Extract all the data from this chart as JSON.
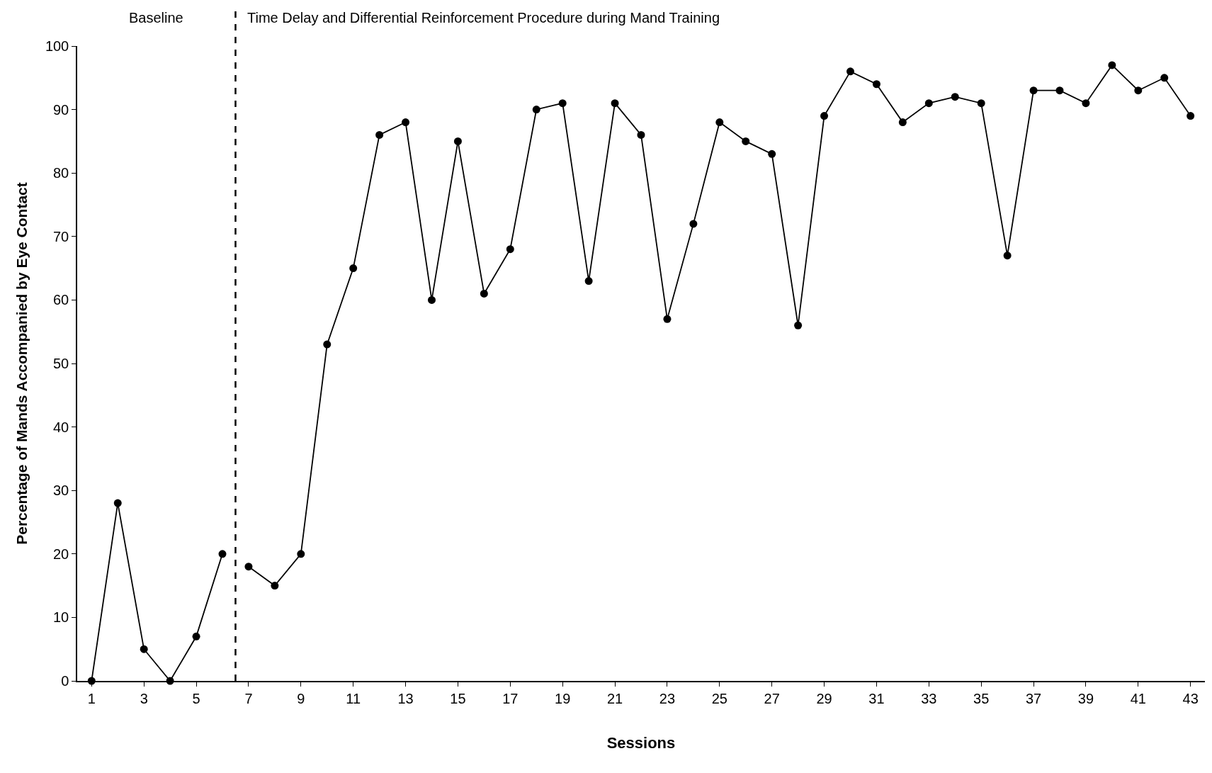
{
  "chart_data": {
    "type": "line",
    "xlabel": "Sessions",
    "ylabel": "Percentage of Mands Accompanied by Eye Contact",
    "annotations": [
      "Baseline",
      "Time Delay and Differential Reinforcement Procedure during Mand Training"
    ],
    "series": [
      {
        "color": "#000000",
        "x": [
          1,
          2,
          3,
          4,
          5,
          6
        ],
        "values": [
          0,
          28,
          5,
          0,
          7,
          20
        ]
      },
      {
        "color": "#000000",
        "x": [
          7,
          8,
          9,
          10,
          11,
          12,
          13,
          14,
          15,
          16,
          17,
          18,
          19,
          20,
          21,
          22,
          23,
          24,
          25,
          26,
          27,
          28,
          29,
          30,
          31,
          32,
          33,
          34,
          35,
          36,
          37,
          38,
          39,
          40,
          41,
          42,
          43
        ],
        "values": [
          18,
          15,
          20,
          53,
          65,
          86,
          88,
          60,
          85,
          61,
          68,
          90,
          91,
          63,
          91,
          86,
          57,
          72,
          88,
          85,
          83,
          56,
          89,
          96,
          94,
          88,
          91,
          92,
          91,
          67,
          93,
          93,
          91,
          97,
          93,
          95,
          89
        ]
      }
    ],
    "xlim": [
      0.45,
      43.55
    ],
    "xticks": [
      1,
      3,
      5,
      7,
      9,
      11,
      13,
      15,
      17,
      19,
      21,
      23,
      25,
      27,
      29,
      31,
      33,
      35,
      37,
      39,
      41,
      43
    ],
    "ylim": [
      0,
      100
    ],
    "yticks": [
      0,
      10,
      20,
      30,
      40,
      50,
      60,
      70,
      80,
      90,
      100
    ],
    "ref_lines": [
      {
        "axis": "x",
        "value": 6.5,
        "color": "#000000",
        "line_style": "dashed"
      }
    ],
    "grid": false,
    "marker": "circle",
    "line_style": "solid"
  }
}
